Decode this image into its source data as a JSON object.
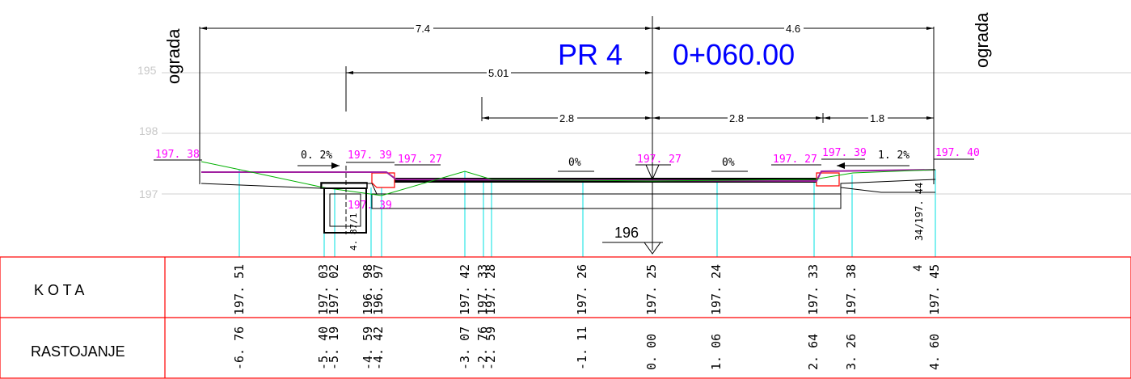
{
  "section": {
    "profile_label": "PR 4",
    "station_label": "0+060.00",
    "left_barrier": "ograda",
    "right_barrier": "ograda"
  },
  "grid_labels": [
    "195",
    "198",
    "197"
  ],
  "dimensions": {
    "left_total": "7.4",
    "right_total": "4.6",
    "left_inner": "5.01",
    "left_lane": "2.8",
    "right_lane": "2.8",
    "right_edge": "1.8"
  },
  "elevation_marks": {
    "left_edge": "197. 38",
    "left_curb_top": "197. 39",
    "left_curb_bottom": "197. 27",
    "center": "197. 27",
    "right_curb_bottom": "197. 27",
    "right_curb_top": "197. 39",
    "right_edge": "197. 40",
    "drain": "197. 39",
    "right_vertical": "34/197. 44"
  },
  "slopes": {
    "left_sidewalk": "0. 2%",
    "left_lane": "0%",
    "right_lane": "0%",
    "right_sidewalk": "1. 2%"
  },
  "datum": "196",
  "drain_depth": "4. 87/1",
  "table": {
    "row1_label": "K O T A",
    "row2_label": "RASTOJANJE",
    "columns": [
      {
        "kota": "197. 51",
        "rastojanje": "-6. 76"
      },
      {
        "kota": "197. 03",
        "rastojanje": "-5. 40"
      },
      {
        "kota": "197. 02",
        "rastojanje": "-5. 19"
      },
      {
        "kota": "196. 98",
        "rastojanje": "-4. 59"
      },
      {
        "kota": "196. 97",
        "rastojanje": "-4. 42"
      },
      {
        "kota": "197. 42",
        "rastojanje": "-3. 07"
      },
      {
        "kota": "197. 33",
        "rastojanje": "-2. 76"
      },
      {
        "kota": "197. 28",
        "rastojanje": "-2. 59"
      },
      {
        "kota": "197. 26",
        "rastojanje": "-1. 11"
      },
      {
        "kota": "197. 25",
        "rastojanje": "0. 00"
      },
      {
        "kota": "197. 24",
        "rastojanje": "1. 06"
      },
      {
        "kota": "197. 33",
        "rastojanje": "2. 64"
      },
      {
        "kota": "197. 38",
        "rastojanje": "3. 26"
      },
      {
        "kota": "197. 45",
        "rastojanje": "4. 60"
      }
    ],
    "extra_label": "4"
  },
  "colors": {
    "magenta": "#ff00ff",
    "cyan": "#00e5e5",
    "blue": "#0000ff",
    "red": "#ff0000",
    "green": "#00b000",
    "grid": "#cccccc"
  }
}
